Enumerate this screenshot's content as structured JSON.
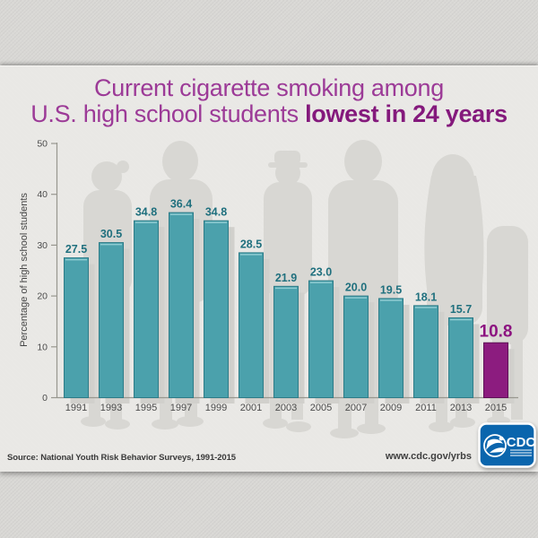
{
  "title": {
    "line1": "Current cigarette smoking among",
    "line2_regular": "U.S. high school students ",
    "line2_bold": "lowest in 24 years"
  },
  "chart_data": {
    "type": "bar",
    "categories": [
      "1991",
      "1993",
      "1995",
      "1997",
      "1999",
      "2001",
      "2003",
      "2005",
      "2007",
      "2009",
      "2011",
      "2013",
      "2015"
    ],
    "values": [
      27.5,
      30.5,
      34.8,
      36.4,
      34.8,
      28.5,
      21.9,
      23.0,
      20.0,
      19.5,
      18.1,
      15.7,
      10.8
    ],
    "title": "Current cigarette smoking among U.S. high school students lowest in 24 years",
    "xlabel": "",
    "ylabel": "Percentage of high school students",
    "ylim": [
      0,
      50
    ],
    "yticks": [
      0,
      10,
      20,
      30,
      40,
      50
    ],
    "grid": false,
    "legend": "none",
    "highlight_index": 12,
    "bar_color": "#4BA1AC",
    "bar_border_color": "#2D7C88",
    "bar_highlight_line": "#8FCCD2",
    "highlight_color": "#8C1C7F",
    "highlight_border_color": "#5F1157",
    "value_label_color": "#20707E",
    "highlight_label_color": "#8C1380",
    "shadow_color": "#d1d0cc",
    "axis_color": "#98978f"
  },
  "footer": {
    "source": "Source: National Youth Risk Behavior Surveys, 1991-2015",
    "url": "www.cdc.gov/yrbs",
    "logo_text": "CDC",
    "logo_color": "#0a65ad"
  },
  "colors": {
    "title_regular": "#9c3a97",
    "title_bold": "#84197c",
    "card_background": "#e9e8e5",
    "page_background": "#d9d8d5",
    "silhouette": "#d8d7d3"
  }
}
